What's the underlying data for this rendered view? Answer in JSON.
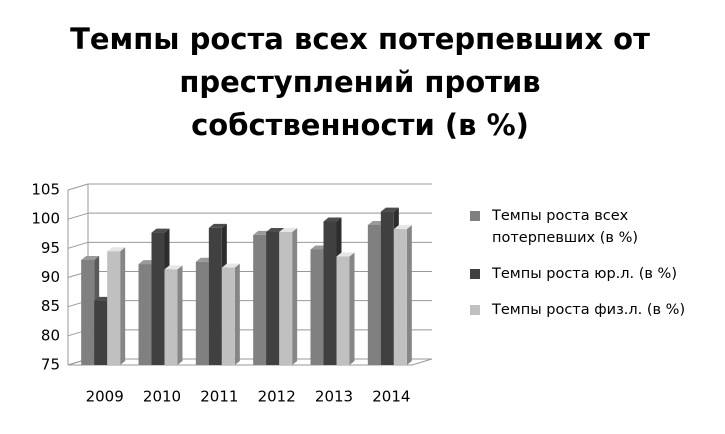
{
  "chart_data": {
    "type": "bar",
    "title": "Темпы роста всех потерпевших от преступлений против собственности (в %)",
    "categories": [
      "2009",
      "2010",
      "2011",
      "2012",
      "2013",
      "2014"
    ],
    "series": [
      {
        "name": "Темпы роста всех потерпевших (в %)",
        "color": "#808080",
        "values": [
          93,
          92.3,
          92.7,
          97.3,
          94.8,
          99
        ]
      },
      {
        "name": "Темпы роста юр.л. (в %)",
        "color": "#404040",
        "values": [
          86,
          97.7,
          98.5,
          97.8,
          99.6,
          101.3
        ]
      },
      {
        "name": "Темпы роста физ.л. (в %)",
        "color": "#c0c0c0",
        "values": [
          94.5,
          91.4,
          91.7,
          97.8,
          93.6,
          98.3
        ]
      }
    ],
    "ylim": [
      75,
      105
    ],
    "yticks": [
      75,
      80,
      85,
      90,
      95,
      100,
      105
    ],
    "grid": true,
    "legend": "right"
  }
}
